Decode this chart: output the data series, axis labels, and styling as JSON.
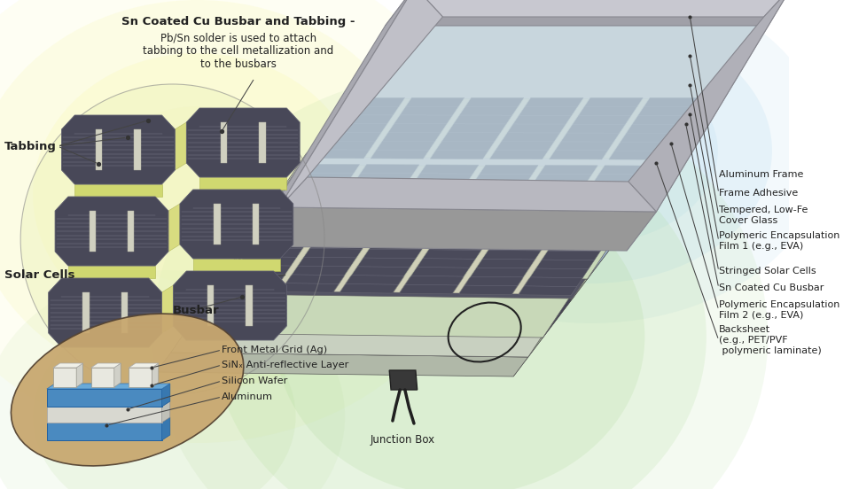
{
  "bg_color": "#ffffff",
  "text_color": "#222222",
  "title_text": "Sn Coated Cu Busbar and Tabbing -",
  "subtitle_text": "Pb/Sn solder is used to attach\ntabbing to the cell metallization and\nto the busbars",
  "labels_right": [
    [
      "Aluminum Frame",
      [
        840,
        195
      ],
      [
        870,
        200
      ]
    ],
    [
      "Frame Adhesive",
      [
        830,
        218
      ],
      [
        870,
        222
      ]
    ],
    [
      "Tempered, Low-Fe\nCover Glass",
      [
        815,
        243
      ],
      [
        870,
        248
      ]
    ],
    [
      "Polymeric Encapsulation\nFilm 1 (e.g., EVA)",
      [
        795,
        272
      ],
      [
        870,
        278
      ]
    ],
    [
      "Stringed Solar Cells",
      [
        775,
        305
      ],
      [
        870,
        308
      ]
    ],
    [
      "Sn Coated Cu Busbar",
      [
        770,
        320
      ],
      [
        870,
        326
      ]
    ],
    [
      "Polymeric Encapsulation\nFilm 2 (e.g., EVA)",
      [
        755,
        348
      ],
      [
        870,
        352
      ]
    ],
    [
      "Backsheet\n(e.g., PET/PVF\n polymeric laminate)",
      [
        740,
        385
      ],
      [
        870,
        388
      ]
    ]
  ],
  "cell_dark": "#484858",
  "cell_line": "#707080",
  "cell_bg": "#d8e8c0",
  "busbar_strip": "#d8d8b0",
  "frame_silver": "#a8a8b0",
  "frame_silver2": "#c0c0c8",
  "glass_color": "#b8d8e8",
  "glass_color2": "#c8e0ec",
  "encap_color": "#c0d8b0",
  "encap_color2": "#cce0bc",
  "backsheet_color": "#b0c8a0",
  "solar_cell_layer": "#545464",
  "blue_layer": "#4a90c8",
  "white_layer": "#e8e8e8",
  "tan_layer": "#c8a878",
  "junction_box_color": "#404040"
}
